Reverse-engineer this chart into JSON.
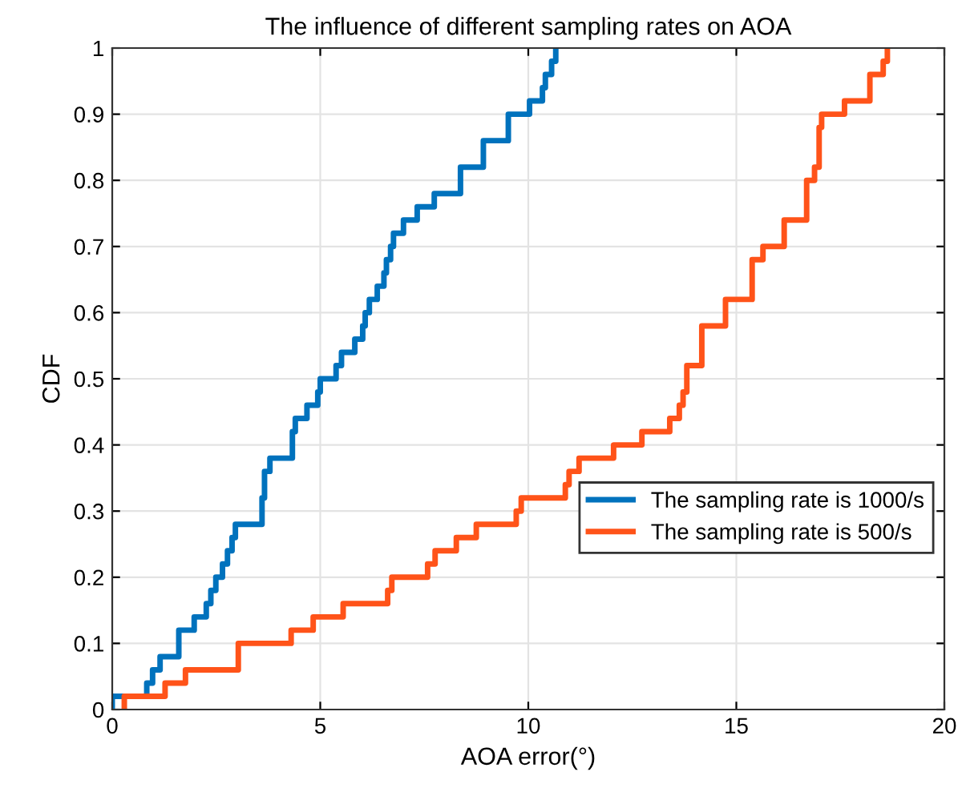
{
  "chart_data": {
    "type": "step",
    "title": "The influence of different sampling rates on AOA",
    "xlabel": "AOA error(°)",
    "ylabel": "CDF",
    "xlim": [
      0,
      20
    ],
    "ylim": [
      0,
      1
    ],
    "xticks": [
      0,
      5,
      10,
      15,
      20
    ],
    "yticks": [
      0,
      0.1,
      0.2,
      0.3,
      0.4,
      0.5,
      0.6,
      0.7,
      0.8,
      0.9,
      1
    ],
    "grid": true,
    "legend": "right",
    "line_style": "solid",
    "series": [
      {
        "name": "The sampling rate is 1000/s",
        "color": "#0072bd",
        "x": [
          0,
          0,
          0.83,
          0.97,
          1.15,
          1.6,
          1.97,
          2.26,
          2.37,
          2.49,
          2.65,
          2.77,
          2.88,
          2.96,
          3.6,
          3.66,
          3.79,
          4.33,
          4.4,
          4.68,
          4.94,
          5.0,
          5.38,
          5.51,
          5.83,
          6.02,
          6.08,
          6.18,
          6.37,
          6.53,
          6.59,
          6.69,
          6.76,
          7.0,
          7.33,
          7.74,
          8.37,
          8.92,
          9.52,
          10.03,
          10.34,
          10.41,
          10.56,
          10.66
        ],
        "values": [
          0,
          0.02,
          0.04,
          0.06,
          0.08,
          0.12,
          0.14,
          0.16,
          0.18,
          0.2,
          0.22,
          0.24,
          0.26,
          0.28,
          0.32,
          0.36,
          0.38,
          0.42,
          0.44,
          0.46,
          0.48,
          0.5,
          0.52,
          0.54,
          0.56,
          0.58,
          0.6,
          0.62,
          0.64,
          0.66,
          0.68,
          0.7,
          0.72,
          0.74,
          0.76,
          0.78,
          0.82,
          0.86,
          0.9,
          0.92,
          0.94,
          0.96,
          0.98,
          1.0
        ]
      },
      {
        "name": "The sampling rate is 500/s",
        "color": "#ff5319",
        "x": [
          0.29,
          0.29,
          1.27,
          1.76,
          3.03,
          4.3,
          4.83,
          5.55,
          6.62,
          6.72,
          7.58,
          7.76,
          8.27,
          8.75,
          9.71,
          9.83,
          10.89,
          10.98,
          11.22,
          12.05,
          12.73,
          13.4,
          13.63,
          13.72,
          13.81,
          14.17,
          14.74,
          15.38,
          15.64,
          16.15,
          16.69,
          16.88,
          16.99,
          17.05,
          17.6,
          18.21,
          18.53,
          18.63
        ],
        "values": [
          0,
          0.02,
          0.04,
          0.06,
          0.1,
          0.12,
          0.14,
          0.16,
          0.18,
          0.2,
          0.22,
          0.24,
          0.26,
          0.28,
          0.3,
          0.32,
          0.34,
          0.36,
          0.38,
          0.4,
          0.42,
          0.44,
          0.46,
          0.48,
          0.52,
          0.58,
          0.62,
          0.68,
          0.7,
          0.74,
          0.8,
          0.82,
          0.88,
          0.9,
          0.92,
          0.96,
          0.98,
          1.0
        ]
      }
    ]
  }
}
